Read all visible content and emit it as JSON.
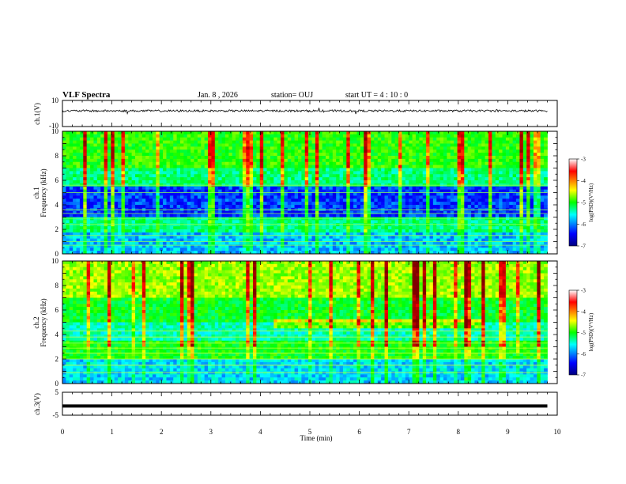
{
  "header": {
    "title": "VLF Spectra",
    "date": "Jan. 8 , 2026",
    "station": "station= OUJ",
    "start_ut": "start UT =  4 : 10 : 0"
  },
  "colors": {
    "spectrogram_colormap": [
      "#00007f",
      "#0000ff",
      "#00ffff",
      "#00ff00",
      "#ffff00",
      "#ff0000",
      "#7f0000"
    ],
    "trace": "#000000"
  },
  "chart_data": [
    {
      "id": "ch1-waveform",
      "type": "line",
      "ylabel": "ch.1(V)",
      "ylim": [
        -10,
        10
      ],
      "ytick_labels": [
        "10",
        "-10"
      ],
      "xlim": [
        0,
        10
      ],
      "description_level": "noisy trace around 2 V",
      "values": [
        {
          "x": 0,
          "y": 2
        },
        {
          "x": 9.8,
          "y": 2
        }
      ]
    },
    {
      "id": "ch1-spectrogram",
      "type": "heatmap",
      "ylabel_top": "ch.1",
      "ylabel": "Frequency (kHz)",
      "ylim": [
        0,
        10
      ],
      "ytick_labels": [
        "0",
        "2",
        "4",
        "6",
        "8",
        "10"
      ],
      "xlim": [
        0,
        10
      ],
      "data_end_min": 9.8,
      "colorbar": {
        "label": "log(PSD)(V²/Hz)",
        "range": [
          -7,
          -3
        ],
        "tick_labels": [
          "-3",
          "-4",
          "-5",
          "-6",
          "-7"
        ]
      }
    },
    {
      "id": "ch2-spectrogram",
      "type": "heatmap",
      "ylabel_top": "ch.2",
      "ylabel": "Frequency (kHz)",
      "ylim": [
        0,
        10
      ],
      "ytick_labels": [
        "0",
        "2",
        "4",
        "6",
        "8",
        "10"
      ],
      "xlim": [
        0,
        10
      ],
      "data_end_min": 9.8,
      "colorbar": {
        "label": "log(PSD)(V²/Hz)",
        "range": [
          -7,
          -3
        ],
        "tick_labels": [
          "-3",
          "-4",
          "-5",
          "-6",
          "-7"
        ]
      }
    },
    {
      "id": "ch3-waveform",
      "type": "line",
      "ylabel": "ch.3(V)",
      "ylim": [
        -5,
        5
      ],
      "ytick_labels": [
        "5",
        "-5"
      ],
      "xlim": [
        0,
        10
      ],
      "values": [
        {
          "x": 0,
          "y": -1
        },
        {
          "x": 9.8,
          "y": -1
        }
      ]
    }
  ],
  "xaxis": {
    "label": "Time (min)",
    "tick_labels": [
      "0",
      "1",
      "2",
      "3",
      "4",
      "5",
      "6",
      "7",
      "8",
      "9",
      "10"
    ]
  }
}
